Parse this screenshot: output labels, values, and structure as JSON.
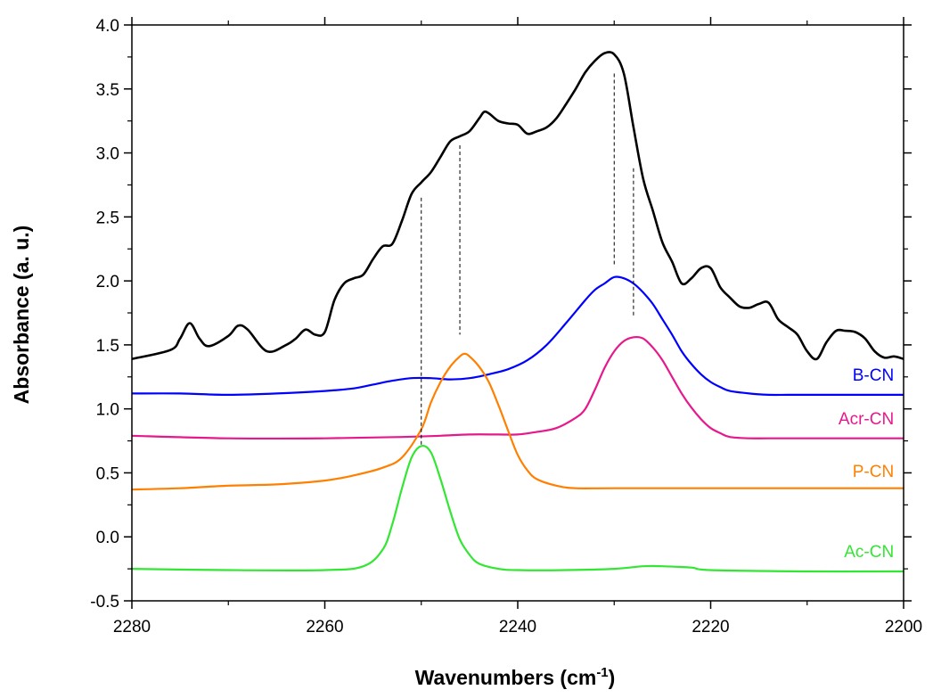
{
  "chart_data": {
    "type": "line",
    "title": "",
    "xlabel": "Wavenumbers (cm",
    "xlabel_sup": "-1",
    "xlabel_suffix": ")",
    "ylabel": "Absorbance (a. u.)",
    "xlim": [
      2280,
      2200
    ],
    "x_reversed": true,
    "ylim": [
      -0.5,
      4.0
    ],
    "x_ticks": [
      "2280",
      "2260",
      "2240",
      "2220",
      "2200"
    ],
    "x_tick_values": [
      2280,
      2260,
      2240,
      2220,
      2200
    ],
    "y_ticks": [
      "-0.5",
      "0.0",
      "0.5",
      "1.0",
      "1.5",
      "2.0",
      "2.5",
      "3.0",
      "3.5",
      "4.0"
    ],
    "y_tick_values": [
      -0.5,
      0.0,
      0.5,
      1.0,
      1.5,
      2.0,
      2.5,
      3.0,
      3.5,
      4.0
    ],
    "grid": false,
    "legend": "none",
    "series": [
      {
        "name": "",
        "color": "#000000",
        "x": [
          2280,
          2276,
          2275,
          2274,
          2273,
          2272,
          2270,
          2269,
          2268,
          2266,
          2264,
          2263,
          2262,
          2261,
          2260,
          2259,
          2258,
          2257,
          2256,
          2255,
          2254,
          2253,
          2252,
          2251,
          2250,
          2249,
          2248,
          2247,
          2246,
          2245,
          2244,
          2243.5,
          2243,
          2242,
          2241,
          2240,
          2239,
          2238,
          2237,
          2236,
          2235,
          2234,
          2233,
          2232,
          2231,
          2230,
          2229,
          2228,
          2227,
          2226,
          2225,
          2224,
          2223,
          2222,
          2221,
          2220,
          2219,
          2218,
          2217,
          2216,
          2215,
          2214,
          2213,
          2212,
          2211,
          2210,
          2209,
          2208,
          2207,
          2206,
          2205,
          2204,
          2203,
          2202,
          2201,
          2200
        ],
        "y": [
          1.39,
          1.46,
          1.55,
          1.67,
          1.55,
          1.49,
          1.57,
          1.65,
          1.62,
          1.45,
          1.5,
          1.55,
          1.62,
          1.58,
          1.6,
          1.85,
          1.98,
          2.02,
          2.05,
          2.17,
          2.27,
          2.29,
          2.47,
          2.68,
          2.77,
          2.85,
          2.97,
          3.09,
          3.13,
          3.17,
          3.27,
          3.32,
          3.31,
          3.25,
          3.23,
          3.22,
          3.15,
          3.17,
          3.2,
          3.27,
          3.38,
          3.5,
          3.63,
          3.72,
          3.78,
          3.77,
          3.62,
          3.2,
          2.8,
          2.55,
          2.3,
          2.15,
          1.98,
          2.02,
          2.1,
          2.1,
          1.95,
          1.87,
          1.8,
          1.79,
          1.82,
          1.83,
          1.7,
          1.64,
          1.58,
          1.45,
          1.39,
          1.52,
          1.61,
          1.61,
          1.6,
          1.55,
          1.45,
          1.4,
          1.41,
          1.39
        ]
      },
      {
        "name": "B-CN",
        "color": "#0000ff",
        "x": [
          2280,
          2275,
          2270,
          2265,
          2260,
          2257,
          2255,
          2253,
          2251,
          2249,
          2247,
          2245,
          2243,
          2241,
          2239,
          2237,
          2235,
          2233,
          2232,
          2231,
          2230,
          2229,
          2228,
          2227,
          2226,
          2225,
          2224,
          2223,
          2222,
          2221,
          2220,
          2219,
          2218,
          2216,
          2214,
          2212,
          2210,
          2205,
          2200
        ],
        "y": [
          1.12,
          1.12,
          1.11,
          1.12,
          1.14,
          1.16,
          1.19,
          1.22,
          1.24,
          1.24,
          1.23,
          1.24,
          1.27,
          1.31,
          1.38,
          1.5,
          1.67,
          1.85,
          1.93,
          1.98,
          2.03,
          2.02,
          1.98,
          1.91,
          1.82,
          1.7,
          1.58,
          1.45,
          1.35,
          1.27,
          1.21,
          1.17,
          1.14,
          1.12,
          1.11,
          1.11,
          1.11,
          1.11,
          1.11
        ]
      },
      {
        "name": "Acr-CN",
        "color": "#e6198c",
        "x": [
          2280,
          2270,
          2260,
          2252,
          2248,
          2245,
          2242,
          2240,
          2238,
          2236,
          2234,
          2233,
          2232,
          2231,
          2230,
          2229,
          2228,
          2227,
          2226,
          2225,
          2224,
          2223,
          2222,
          2221,
          2220,
          2219,
          2218,
          2216,
          2214,
          2210,
          2205,
          2200
        ],
        "y": [
          0.79,
          0.77,
          0.77,
          0.78,
          0.79,
          0.8,
          0.8,
          0.8,
          0.82,
          0.85,
          0.93,
          1.0,
          1.15,
          1.32,
          1.45,
          1.53,
          1.56,
          1.55,
          1.48,
          1.38,
          1.25,
          1.12,
          1.01,
          0.92,
          0.85,
          0.81,
          0.78,
          0.77,
          0.77,
          0.77,
          0.77,
          0.77
        ]
      },
      {
        "name": "P-CN",
        "color": "#ff8000",
        "x": [
          2280,
          2275,
          2270,
          2265,
          2260,
          2257,
          2254,
          2252,
          2250,
          2249,
          2248,
          2247,
          2246,
          2245.5,
          2245,
          2244,
          2243,
          2242,
          2241,
          2240,
          2239,
          2238,
          2236,
          2234,
          2230,
          2220,
          2210,
          2200
        ],
        "y": [
          0.37,
          0.38,
          0.4,
          0.41,
          0.44,
          0.48,
          0.54,
          0.62,
          0.84,
          1.05,
          1.21,
          1.33,
          1.41,
          1.43,
          1.41,
          1.33,
          1.21,
          1.03,
          0.83,
          0.64,
          0.52,
          0.45,
          0.4,
          0.38,
          0.38,
          0.38,
          0.38,
          0.38
        ]
      },
      {
        "name": "Ac-CN",
        "color": "#33e633",
        "x": [
          2280,
          2270,
          2260,
          2256,
          2254,
          2253,
          2252,
          2251,
          2250,
          2249,
          2248,
          2247,
          2246,
          2245,
          2244,
          2242,
          2240,
          2235,
          2230,
          2227,
          2225,
          2222,
          2220,
          2210,
          2200
        ],
        "y": [
          -0.25,
          -0.26,
          -0.26,
          -0.23,
          -0.1,
          0.1,
          0.38,
          0.62,
          0.71,
          0.66,
          0.45,
          0.2,
          -0.02,
          -0.14,
          -0.21,
          -0.25,
          -0.26,
          -0.26,
          -0.25,
          -0.23,
          -0.23,
          -0.24,
          -0.26,
          -0.27,
          -0.27
        ]
      }
    ],
    "series_labels": [
      {
        "text": "B-CN",
        "color": "#0000ff",
        "x": 2201,
        "y": 1.22
      },
      {
        "text": "Acr-CN",
        "color": "#e6198c",
        "x": 2201,
        "y": 0.88
      },
      {
        "text": "P-CN",
        "color": "#ff8000",
        "x": 2201,
        "y": 0.47
      },
      {
        "text": "Ac-CN",
        "color": "#33e633",
        "x": 2201,
        "y": -0.16
      }
    ],
    "reference_lines": [
      {
        "x": 2250,
        "y_top": 2.65,
        "y_bottom": 0.72
      },
      {
        "x": 2246,
        "y_top": 3.06,
        "y_bottom": 1.58
      },
      {
        "x": 2230,
        "y_top": 3.62,
        "y_bottom": 2.11
      },
      {
        "x": 2228,
        "y_top": 2.88,
        "y_bottom": 1.73
      }
    ]
  }
}
